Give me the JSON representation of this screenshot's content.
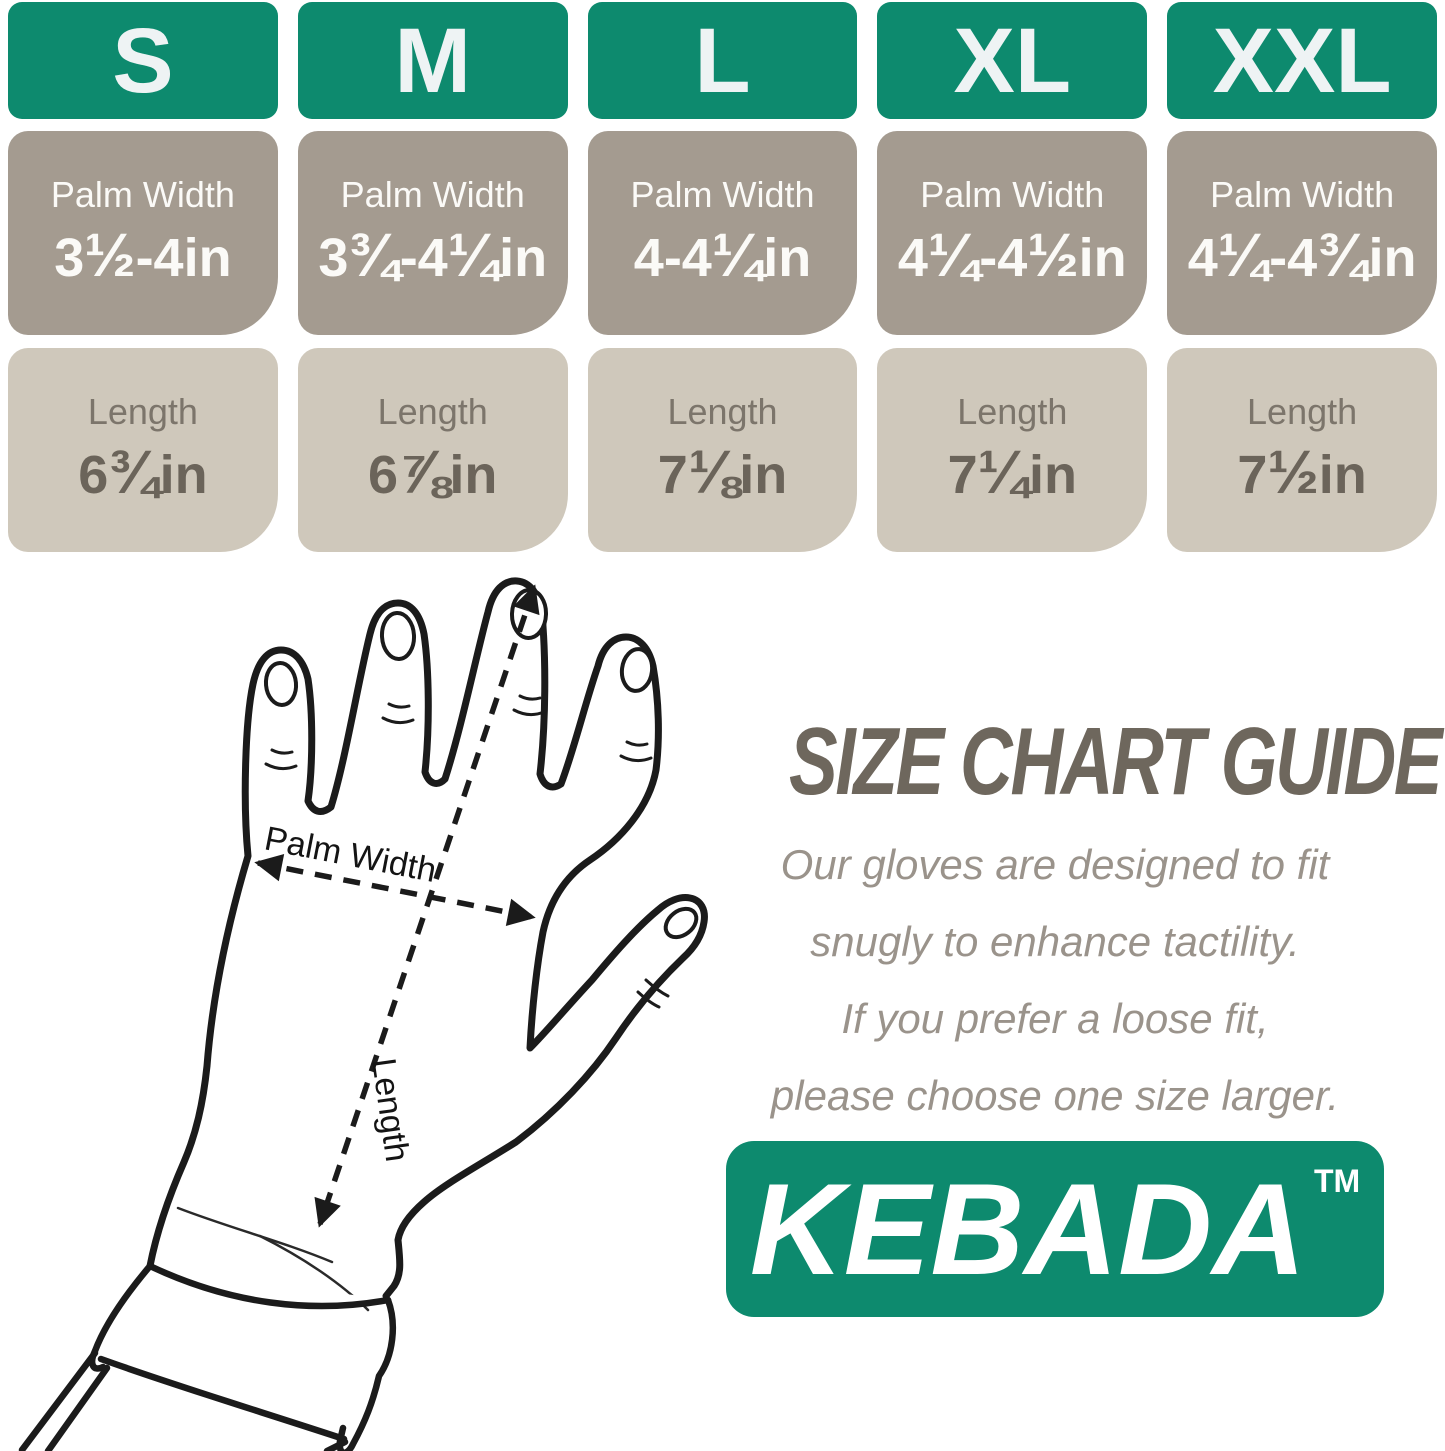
{
  "colors": {
    "teal": "#0d8a6e",
    "header_text": "#eef3f4",
    "palm_bg": "#a49b90",
    "palm_text": "#fbfaf7",
    "len_bg": "#cfc8bb",
    "len_label": "#7c756b",
    "len_value": "#6b645a",
    "title_color": "#6e675d",
    "body_color": "#9a938b",
    "ink": "#1b1b1b"
  },
  "size_table": {
    "palm_row_label": "Palm Width",
    "length_row_label": "Length",
    "sizes": [
      {
        "label": "S",
        "palm_width": "3½-4in",
        "length": "6¾in"
      },
      {
        "label": "M",
        "palm_width": "3¾-4¼in",
        "length": "6⅞in"
      },
      {
        "label": "L",
        "palm_width": "4-4¼in",
        "length": "7⅛in"
      },
      {
        "label": "XL",
        "palm_width": "4¼-4½in",
        "length": "7¼in"
      },
      {
        "label": "XXL",
        "palm_width": "4¼-4¾in",
        "length": "7½in"
      }
    ]
  },
  "diagram": {
    "palm_width_label": "Palm Width",
    "length_label": "Length"
  },
  "guide": {
    "title": "SIZE CHART GUIDE",
    "lines": [
      "Our gloves are designed to fit",
      "snugly to enhance tactility.",
      "If you prefer a loose fit,",
      "please choose one size larger."
    ]
  },
  "brand": {
    "name": "KEBADA",
    "trademark": "TM"
  }
}
